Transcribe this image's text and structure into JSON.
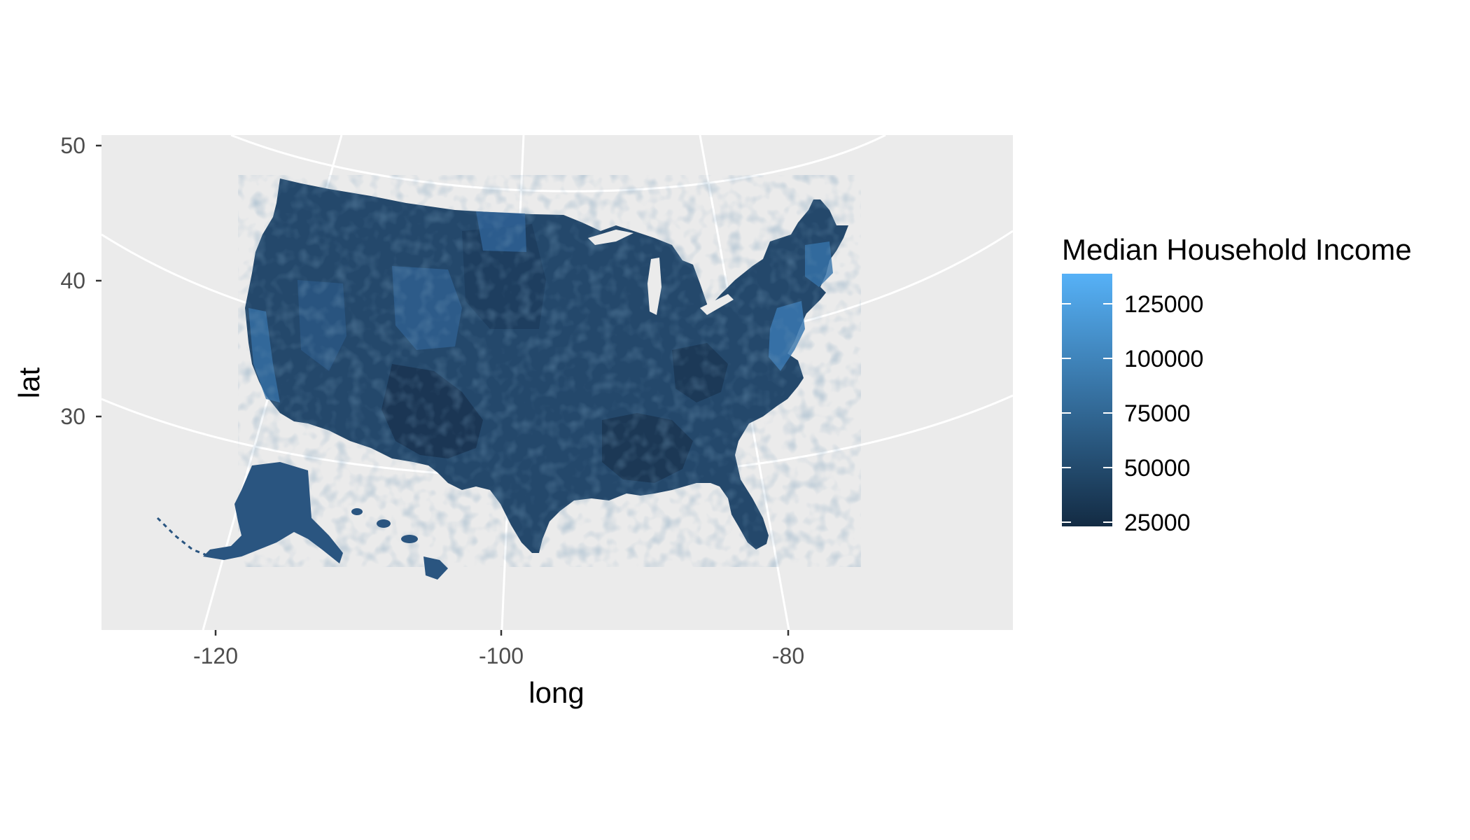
{
  "chart_data": {
    "type": "map",
    "subject": "County-level median household income, United States",
    "xlabel": "long",
    "ylabel": "lat",
    "x_ticks": [
      -120,
      -100,
      -80
    ],
    "y_ticks": [
      30,
      40,
      50
    ],
    "x_tick_labels": [
      "-120",
      "-100",
      "-80"
    ],
    "y_tick_labels": [
      "30",
      "40",
      "50"
    ],
    "xlim": [
      -128,
      -64.5
    ],
    "ylim": [
      15.2,
      50.8
    ],
    "grid": true,
    "projection": "albers",
    "legend": {
      "title": "Median Household Income",
      "placement": "right",
      "type": "colorbar",
      "breaks": [
        25000,
        50000,
        75000,
        100000,
        125000
      ],
      "labels": [
        "125000",
        "100000",
        "75000",
        "50000",
        "25000"
      ],
      "range": [
        22000,
        136000
      ],
      "color_low": "#132b43",
      "color_high": "#56b1f7"
    }
  },
  "colors": {
    "panel_background": "#ebebeb",
    "grid_line": "#ffffff",
    "map_base": "#24486b",
    "map_dark": "#1a3450",
    "map_mid": "#2d5d8a",
    "map_light": "#3f82bf",
    "map_bright": "#56b1f7",
    "tick_label": "#4d4d4d",
    "text": "#000000"
  }
}
